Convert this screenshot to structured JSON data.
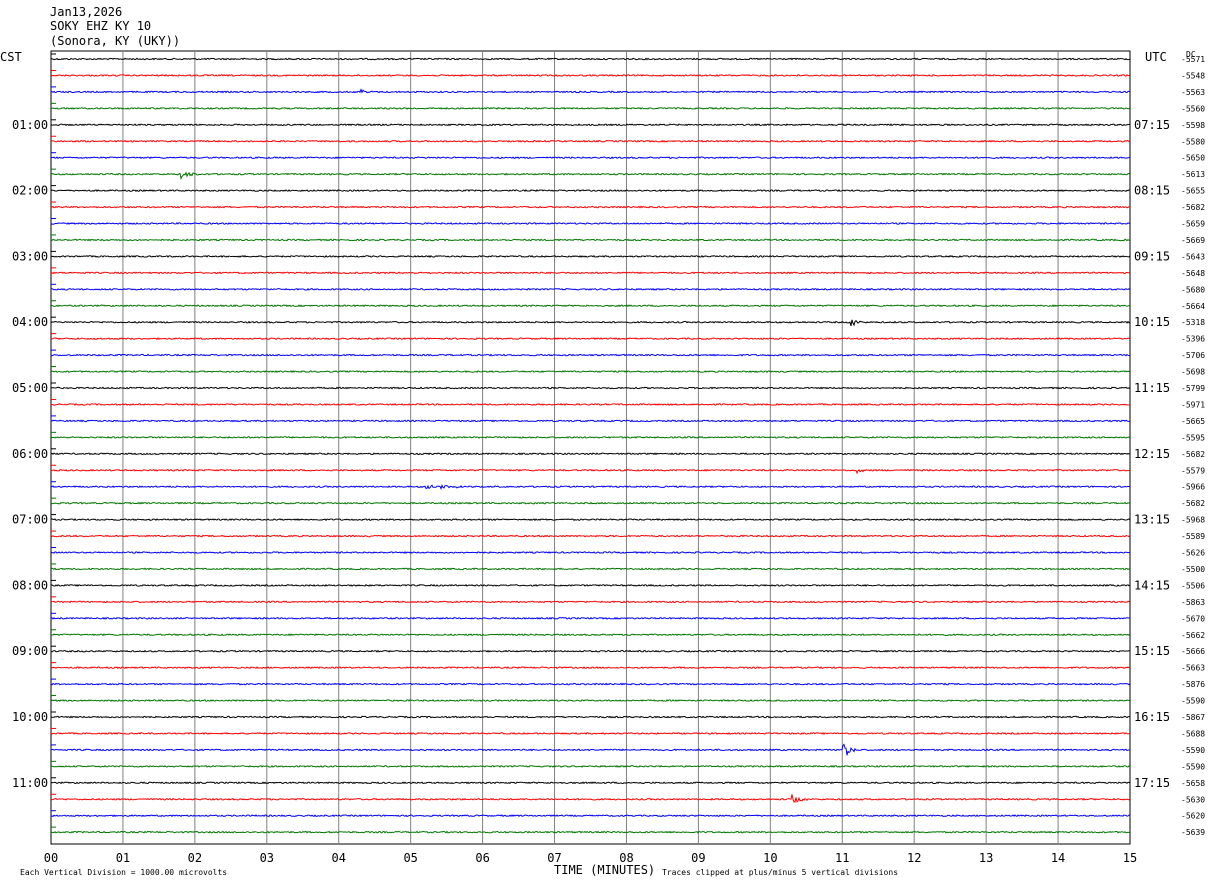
{
  "header": {
    "date": "Jan13,2026",
    "station": "SOKY EHZ KY 10",
    "location": "(Sonora, KY (UKY))"
  },
  "left_timezone": "CST",
  "right_timezone": "UTC",
  "dc_header": "DC",
  "footer": {
    "left": "Each Vertical Division = 1000.00 microvolts",
    "center": "TIME (MINUTES)",
    "right": "Traces clipped at plus/minus 5 vertical divisions"
  },
  "colors": {
    "cycle": [
      "#000000",
      "#ff0000",
      "#0000ff",
      "#007700"
    ],
    "grid": "#808080"
  },
  "chart_data": {
    "type": "line",
    "title": "SOKY EHZ KY 10",
    "xlabel": "TIME (MINUTES)",
    "xlim": [
      0,
      15
    ],
    "x_ticks": [
      "00",
      "01",
      "02",
      "03",
      "04",
      "05",
      "06",
      "07",
      "08",
      "09",
      "10",
      "11",
      "12",
      "13",
      "14",
      "15"
    ],
    "trace_count": 48,
    "trace_minutes": 15,
    "left_hour_labels": [
      "01:00",
      "02:00",
      "03:00",
      "04:00",
      "05:00",
      "06:00",
      "07:00",
      "08:00",
      "09:00",
      "10:00",
      "11:00"
    ],
    "right_hour_labels": [
      "07:15",
      "08:15",
      "09:15",
      "10:15",
      "11:15",
      "12:15",
      "13:15",
      "14:15",
      "15:15",
      "16:15",
      "17:15"
    ],
    "dc_offsets": [
      "-5571",
      "-5548",
      "-5563",
      "-5560",
      "-5598",
      "-5580",
      "-5650",
      "-5613",
      "-5655",
      "-5682",
      "-5659",
      "-5669",
      "-5643",
      "-5648",
      "-5680",
      "-5664",
      "-5318",
      "-5396",
      "-5706",
      "-5698",
      "-5799",
      "-5971",
      "-5665",
      "-5595",
      "-5682",
      "-5579",
      "-5966",
      "-5682",
      "-5968",
      "-5589",
      "-5626",
      "-5500",
      "-5506",
      "-5863",
      "-5670",
      "-5662",
      "-5666",
      "-5663",
      "-5876",
      "-5590",
      "-5867",
      "-5688",
      "-5590",
      "-5590",
      "-5658",
      "-5630",
      "-5620",
      "-5639"
    ],
    "events": [
      {
        "trace": 2,
        "minute": 4.3,
        "amp": 4,
        "dur": 0.2
      },
      {
        "trace": 7,
        "minute": 1.8,
        "amp": 4,
        "dur": 0.4
      },
      {
        "trace": 16,
        "minute": 11.1,
        "amp": 7,
        "dur": 0.2
      },
      {
        "trace": 25,
        "minute": 11.2,
        "amp": 4,
        "dur": 0.15
      },
      {
        "trace": 26,
        "minute": 5.2,
        "amp": 3,
        "dur": 1.0
      },
      {
        "trace": 42,
        "minute": 11.0,
        "amp": 12,
        "dur": 0.25
      },
      {
        "trace": 45,
        "minute": 10.3,
        "amp": 5,
        "dur": 0.3
      }
    ]
  }
}
